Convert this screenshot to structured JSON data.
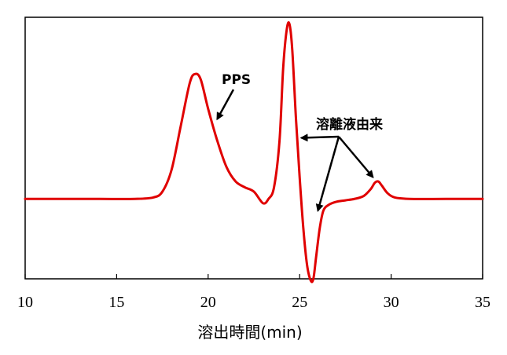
{
  "chart_data": {
    "type": "line",
    "title": "",
    "xlabel": "溶出時間(min)",
    "ylabel": "",
    "xlim": [
      10,
      35
    ],
    "ylim": [
      -0.55,
      1.25
    ],
    "x_ticks": [
      10,
      15,
      20,
      25,
      30,
      35
    ],
    "y_ticks_shown": false,
    "grid": false,
    "legend": "none",
    "series": [
      {
        "color": "#e00000",
        "x": [
          10,
          12,
          14,
          16,
          17,
          17.5,
          18,
          18.5,
          19,
          19.3,
          19.6,
          20,
          20.5,
          21,
          21.5,
          22,
          22.5,
          23,
          23.3,
          23.6,
          23.9,
          24.1,
          24.3,
          24.45,
          24.6,
          24.8,
          25,
          25.2,
          25.4,
          25.6,
          25.75,
          25.9,
          26.1,
          26.3,
          26.6,
          27,
          27.5,
          28,
          28.5,
          28.9,
          29.1,
          29.3,
          29.5,
          29.8,
          30.2,
          31,
          33,
          35
        ],
        "y": [
          0,
          0,
          0,
          0,
          0.01,
          0.05,
          0.2,
          0.5,
          0.8,
          0.86,
          0.82,
          0.62,
          0.4,
          0.22,
          0.12,
          0.08,
          0.05,
          -0.03,
          0.0,
          0.08,
          0.4,
          0.9,
          1.17,
          1.2,
          1.02,
          0.55,
          0.15,
          -0.2,
          -0.45,
          -0.56,
          -0.55,
          -0.4,
          -0.2,
          -0.08,
          -0.04,
          -0.02,
          -0.01,
          0.0,
          0.02,
          0.07,
          0.11,
          0.12,
          0.09,
          0.04,
          0.01,
          0.0,
          0.0,
          0.0
        ]
      }
    ],
    "annotations": [
      {
        "text": "PPS",
        "target": [
          20.5,
          0.55
        ]
      },
      {
        "text": "溶離液由来",
        "targets": [
          [
            25.1,
            0.42
          ],
          [
            26.0,
            -0.08
          ],
          [
            29.0,
            0.15
          ]
        ]
      }
    ]
  }
}
